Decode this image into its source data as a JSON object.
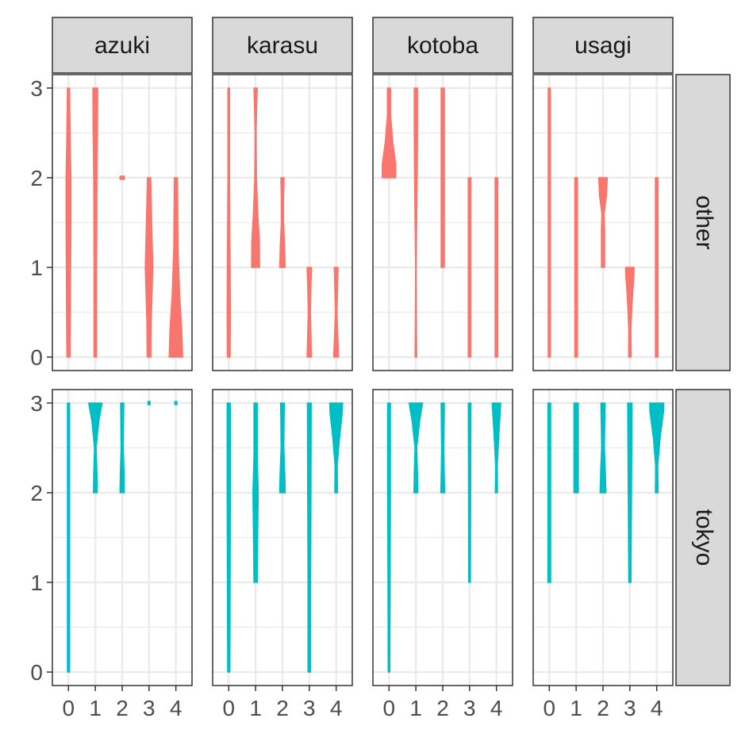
{
  "chart_data": {
    "type": "violin",
    "title": "",
    "xlabel": "",
    "ylabel": "",
    "x_ticks": [
      "0",
      "1",
      "2",
      "3",
      "4"
    ],
    "y_ticks": [
      "0",
      "1",
      "2",
      "3"
    ],
    "xlim": [
      -0.6,
      4.6
    ],
    "ylim": [
      -0.15,
      3.15
    ],
    "column_facets": [
      "azuki",
      "karasu",
      "kotoba",
      "usagi"
    ],
    "row_facets": [
      "other",
      "tokyo"
    ],
    "colors": {
      "other": "#F8766D",
      "tokyo": "#00BFC4",
      "strip_fill": "#D9D9D9",
      "grid": "#EBEBEB",
      "panel_border": "#333333"
    },
    "panels": [
      {
        "row": "other",
        "col": "azuki",
        "violins": [
          {
            "x": 0,
            "min": 0,
            "max": 3,
            "profile": [
              [
                0,
                0.06
              ],
              [
                0.5,
                0.07
              ],
              [
                1,
                0.08
              ],
              [
                1.5,
                0.09
              ],
              [
                2,
                0.09
              ],
              [
                2.5,
                0.06
              ],
              [
                3,
                0.04
              ]
            ]
          },
          {
            "x": 1,
            "min": 0,
            "max": 3,
            "profile": [
              [
                0,
                0.05
              ],
              [
                1,
                0.05
              ],
              [
                2,
                0.06
              ],
              [
                2.5,
                0.08
              ],
              [
                3,
                0.09
              ]
            ]
          },
          {
            "x": 2,
            "min": 2,
            "max": 2,
            "profile": [
              [
                2,
                0.08
              ]
            ]
          },
          {
            "x": 3,
            "min": 0,
            "max": 2,
            "profile": [
              [
                0,
                0.07
              ],
              [
                0.4,
                0.08
              ],
              [
                1,
                0.14
              ],
              [
                1.6,
                0.09
              ],
              [
                2,
                0.06
              ]
            ]
          },
          {
            "x": 4,
            "min": 0,
            "max": 2,
            "profile": [
              [
                0,
                0.25
              ],
              [
                0.3,
                0.22
              ],
              [
                0.7,
                0.14
              ],
              [
                1.2,
                0.08
              ],
              [
                2,
                0.06
              ]
            ]
          }
        ]
      },
      {
        "row": "other",
        "col": "karasu",
        "violins": [
          {
            "x": 0,
            "min": 0,
            "max": 3,
            "profile": [
              [
                0,
                0.05
              ],
              [
                0.5,
                0.06
              ],
              [
                1,
                0.05
              ],
              [
                2,
                0.03
              ],
              [
                3,
                0.03
              ]
            ]
          },
          {
            "x": 1,
            "min": 1,
            "max": 3,
            "profile": [
              [
                1,
                0.15
              ],
              [
                1.3,
                0.14
              ],
              [
                1.6,
                0.08
              ],
              [
                2,
                0.03
              ],
              [
                2.5,
                0.02
              ],
              [
                2.8,
                0.04
              ],
              [
                3,
                0.06
              ]
            ]
          },
          {
            "x": 2,
            "min": 1,
            "max": 2,
            "profile": [
              [
                1,
                0.1
              ],
              [
                1.25,
                0.08
              ],
              [
                1.5,
                0.04
              ],
              [
                1.75,
                0.04
              ],
              [
                2,
                0.06
              ]
            ]
          },
          {
            "x": 3,
            "min": 0,
            "max": 1,
            "profile": [
              [
                0,
                0.08
              ],
              [
                0.5,
                0.04
              ],
              [
                0.8,
                0.06
              ],
              [
                1,
                0.08
              ]
            ]
          },
          {
            "x": 4,
            "min": 0,
            "max": 1,
            "profile": [
              [
                0,
                0.09
              ],
              [
                0.5,
                0.03
              ],
              [
                1,
                0.07
              ]
            ]
          }
        ]
      },
      {
        "row": "other",
        "col": "kotoba",
        "violins": [
          {
            "x": 0,
            "min": 2,
            "max": 3,
            "profile": [
              [
                2,
                0.25
              ],
              [
                2.15,
                0.25
              ],
              [
                2.4,
                0.14
              ],
              [
                2.7,
                0.06
              ],
              [
                3,
                0.06
              ]
            ]
          },
          {
            "x": 1,
            "min": 0,
            "max": 3,
            "profile": [
              [
                0,
                0.03
              ],
              [
                0.4,
                0.02
              ],
              [
                1,
                0.01
              ],
              [
                1.5,
                0.03
              ],
              [
                2,
                0.05
              ],
              [
                2.5,
                0.06
              ],
              [
                3,
                0.06
              ]
            ]
          },
          {
            "x": 2,
            "min": 1,
            "max": 3,
            "profile": [
              [
                1,
                0.06
              ],
              [
                2,
                0.06
              ],
              [
                3,
                0.06
              ]
            ]
          },
          {
            "x": 3,
            "min": 0,
            "max": 2,
            "profile": [
              [
                0,
                0.05
              ],
              [
                1,
                0.05
              ],
              [
                2,
                0.05
              ]
            ]
          },
          {
            "x": 4,
            "min": 0,
            "max": 2,
            "profile": [
              [
                0,
                0.05
              ],
              [
                1,
                0.05
              ],
              [
                2,
                0.05
              ]
            ]
          }
        ]
      },
      {
        "row": "other",
        "col": "usagi",
        "violins": [
          {
            "x": 0,
            "min": 0,
            "max": 3,
            "profile": [
              [
                0,
                0.04
              ],
              [
                1,
                0.04
              ],
              [
                2,
                0.04
              ],
              [
                3,
                0.04
              ]
            ]
          },
          {
            "x": 1,
            "min": 0,
            "max": 2,
            "profile": [
              [
                0,
                0.05
              ],
              [
                1,
                0.05
              ],
              [
                2,
                0.05
              ]
            ]
          },
          {
            "x": 2,
            "min": 1,
            "max": 2,
            "profile": [
              [
                1,
                0.06
              ],
              [
                1.4,
                0.06
              ],
              [
                1.6,
                0.04
              ],
              [
                1.8,
                0.13
              ],
              [
                2,
                0.16
              ]
            ]
          },
          {
            "x": 3,
            "min": 0,
            "max": 1,
            "profile": [
              [
                0,
                0.05
              ],
              [
                0.3,
                0.04
              ],
              [
                0.6,
                0.08
              ],
              [
                0.9,
                0.15
              ],
              [
                1,
                0.16
              ]
            ]
          },
          {
            "x": 4,
            "min": 0,
            "max": 2,
            "profile": [
              [
                0,
                0.05
              ],
              [
                1,
                0.05
              ],
              [
                2,
                0.05
              ]
            ]
          }
        ]
      },
      {
        "row": "tokyo",
        "col": "azuki",
        "violins": [
          {
            "x": 0,
            "min": 0,
            "max": 3,
            "profile": [
              [
                0,
                0.04
              ],
              [
                1,
                0.04
              ],
              [
                2,
                0.04
              ],
              [
                3,
                0.04
              ]
            ]
          },
          {
            "x": 1,
            "min": 2,
            "max": 3,
            "profile": [
              [
                2,
                0.07
              ],
              [
                2.2,
                0.06
              ],
              [
                2.5,
                0.03
              ],
              [
                2.8,
                0.13
              ],
              [
                3,
                0.25
              ]
            ]
          },
          {
            "x": 2,
            "min": 2,
            "max": 3,
            "profile": [
              [
                2,
                0.08
              ],
              [
                2.2,
                0.07
              ],
              [
                2.5,
                0.04
              ],
              [
                2.8,
                0.05
              ],
              [
                3,
                0.06
              ]
            ]
          },
          {
            "x": 3,
            "min": 3,
            "max": 3,
            "profile": [
              [
                3,
                0.04
              ]
            ]
          },
          {
            "x": 4,
            "min": 3,
            "max": 3,
            "profile": [
              [
                3,
                0.04
              ]
            ]
          }
        ]
      },
      {
        "row": "tokyo",
        "col": "karasu",
        "violins": [
          {
            "x": 0,
            "min": 0,
            "max": 3,
            "profile": [
              [
                0,
                0.04
              ],
              [
                1,
                0.05
              ],
              [
                2,
                0.06
              ],
              [
                3,
                0.06
              ]
            ]
          },
          {
            "x": 1,
            "min": 1,
            "max": 3,
            "profile": [
              [
                1,
                0.06
              ],
              [
                1.6,
                0.08
              ],
              [
                2,
                0.1
              ],
              [
                2.4,
                0.06
              ],
              [
                2.8,
                0.06
              ],
              [
                3,
                0.06
              ]
            ]
          },
          {
            "x": 2,
            "min": 2,
            "max": 3,
            "profile": [
              [
                2,
                0.1
              ],
              [
                2.2,
                0.09
              ],
              [
                2.5,
                0.05
              ],
              [
                2.8,
                0.06
              ],
              [
                3,
                0.07
              ]
            ]
          },
          {
            "x": 3,
            "min": 0,
            "max": 3,
            "profile": [
              [
                0,
                0.05
              ],
              [
                1,
                0.05
              ],
              [
                2,
                0.06
              ],
              [
                3,
                0.07
              ]
            ]
          },
          {
            "x": 4,
            "min": 2,
            "max": 3,
            "profile": [
              [
                2,
                0.05
              ],
              [
                2.3,
                0.04
              ],
              [
                2.6,
                0.12
              ],
              [
                2.9,
                0.23
              ],
              [
                3,
                0.24
              ]
            ]
          }
        ]
      },
      {
        "row": "tokyo",
        "col": "kotoba",
        "violins": [
          {
            "x": 0,
            "min": 0,
            "max": 3,
            "profile": [
              [
                0,
                0.03
              ],
              [
                1,
                0.04
              ],
              [
                2,
                0.05
              ],
              [
                3,
                0.05
              ]
            ]
          },
          {
            "x": 1,
            "min": 2,
            "max": 3,
            "profile": [
              [
                2,
                0.07
              ],
              [
                2.2,
                0.06
              ],
              [
                2.5,
                0.03
              ],
              [
                2.8,
                0.14
              ],
              [
                3,
                0.25
              ]
            ]
          },
          {
            "x": 2,
            "min": 2,
            "max": 3,
            "profile": [
              [
                2,
                0.07
              ],
              [
                2.3,
                0.05
              ],
              [
                2.5,
                0.04
              ],
              [
                2.7,
                0.05
              ],
              [
                3,
                0.06
              ]
            ]
          },
          {
            "x": 3,
            "min": 1,
            "max": 3,
            "profile": [
              [
                1,
                0.03
              ],
              [
                2,
                0.04
              ],
              [
                3,
                0.05
              ]
            ]
          },
          {
            "x": 4,
            "min": 2,
            "max": 3,
            "profile": [
              [
                2,
                0.04
              ],
              [
                2.3,
                0.03
              ],
              [
                2.6,
                0.08
              ],
              [
                3,
                0.16
              ]
            ]
          }
        ]
      },
      {
        "row": "tokyo",
        "col": "usagi",
        "violins": [
          {
            "x": 0,
            "min": 1,
            "max": 3,
            "profile": [
              [
                1,
                0.05
              ],
              [
                2,
                0.05
              ],
              [
                3,
                0.05
              ]
            ]
          },
          {
            "x": 1,
            "min": 2,
            "max": 3,
            "profile": [
              [
                2,
                0.08
              ],
              [
                2.5,
                0.08
              ],
              [
                3,
                0.08
              ]
            ]
          },
          {
            "x": 2,
            "min": 2,
            "max": 3,
            "profile": [
              [
                2,
                0.11
              ],
              [
                2.3,
                0.08
              ],
              [
                2.5,
                0.05
              ],
              [
                2.7,
                0.06
              ],
              [
                3,
                0.08
              ]
            ]
          },
          {
            "x": 3,
            "min": 1,
            "max": 3,
            "profile": [
              [
                1,
                0.04
              ],
              [
                2,
                0.06
              ],
              [
                3,
                0.08
              ]
            ]
          },
          {
            "x": 4,
            "min": 2,
            "max": 3,
            "profile": [
              [
                2,
                0.05
              ],
              [
                2.3,
                0.04
              ],
              [
                2.6,
                0.12
              ],
              [
                2.9,
                0.25
              ],
              [
                3,
                0.26
              ]
            ]
          }
        ]
      }
    ]
  }
}
